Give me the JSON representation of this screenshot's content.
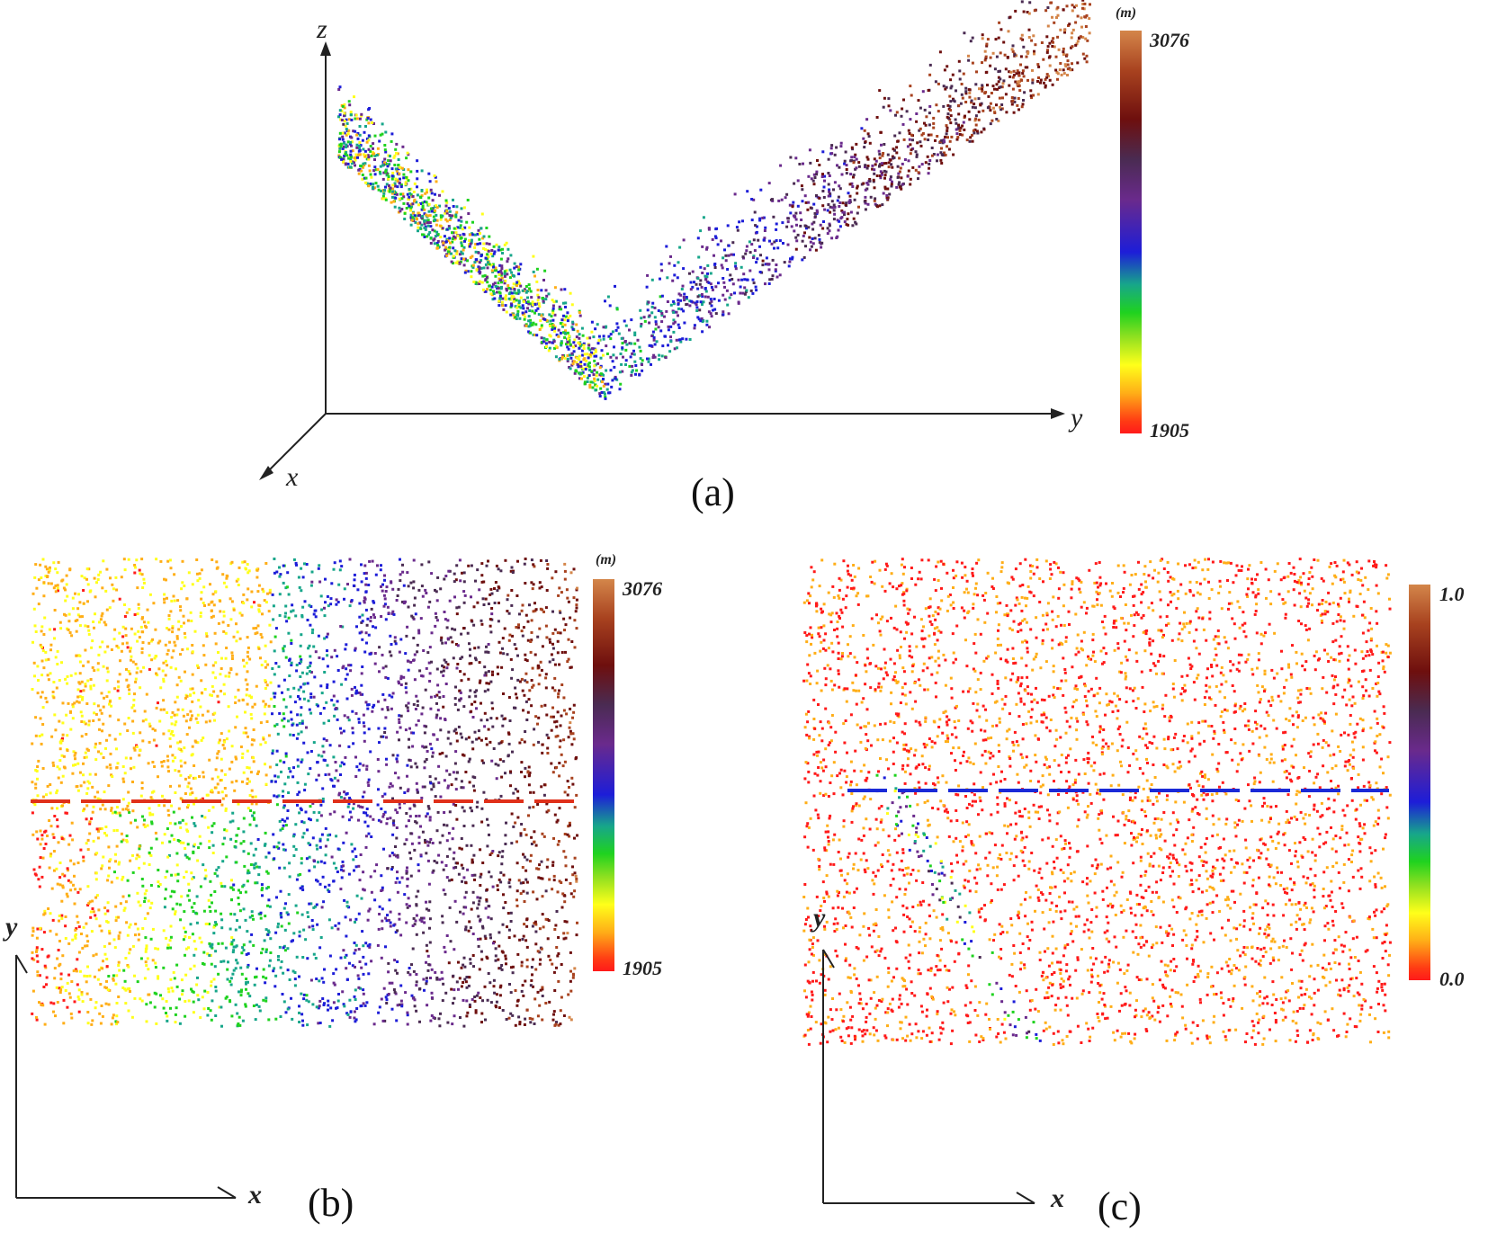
{
  "panel_a": {
    "caption": "(a)",
    "axis_z": "z",
    "axis_y": "y",
    "axis_x": "x",
    "colorbar_unit": "(m)",
    "colorbar_max": "3076",
    "colorbar_min": "1905"
  },
  "panel_b": {
    "caption": "(b)",
    "axis_y": "y",
    "axis_x": "x",
    "colorbar_unit": "(m)",
    "colorbar_max": "3076",
    "colorbar_min": "1905",
    "dashed_line_color": "#e0301a"
  },
  "panel_c": {
    "caption": "(c)",
    "axis_y": "y",
    "axis_x": "x",
    "colorbar_max": "1.0",
    "colorbar_min": "0.0",
    "dashed_line_color": "#1a2ad8"
  },
  "colormap": [
    "#ff1a1a",
    "#ffae17",
    "#ffff1a",
    "#1fd21f",
    "#17a68a",
    "#1d1dd8",
    "#6a2a8c",
    "#4a2b52",
    "#6e0f0e",
    "#a8421f",
    "#d4864a"
  ]
}
